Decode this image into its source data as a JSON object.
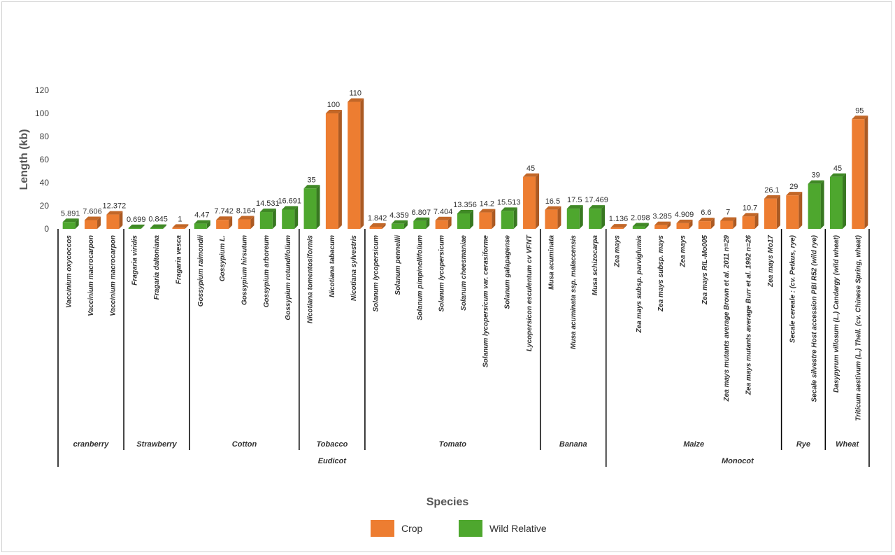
{
  "chart_data": {
    "type": "bar",
    "xlabel": "Species",
    "ylabel": "Length (kb)",
    "ylim": [
      0,
      120
    ],
    "yticks": [
      0,
      20,
      40,
      60,
      80,
      100,
      120
    ],
    "grid": false,
    "legend_position": "bottom",
    "legend": [
      {
        "name": "Crop",
        "color": "#ED7D31"
      },
      {
        "name": "Wild Relative",
        "color": "#4EA72E"
      }
    ],
    "categories": [
      "Vaccinium oxycoccos",
      "Vaccinium macrocarpon",
      "Vaccinium macrocarpon",
      "Fragaria viridis",
      "Fragaria daltoniana",
      "Fragaria vesca",
      "Gossypium raimondii",
      "Gossypium L.",
      "Gossypium hirsutum",
      "Gossypium arboreum",
      "Gossypium rotundifolium",
      "Nicotiana tomentosiformis",
      "Nicotiana tabacum",
      "Nicotiana sylvestris",
      "Solanum lycopersicum",
      "Solanum pennellii",
      "Solanum pimpinellifolium",
      "Solanum lycopersicum",
      "Solanum cheesmaniae",
      "Solanum lycopersicum var. cerasiforme",
      "Solanum galapagense",
      "Lycopersicon esculentum cv VFNT",
      "Musa acuminata",
      "Musa acuminata ssp. malaccensis",
      "Musa schizocarpa",
      "Zea mays",
      "Zea mays subsp. parviglumis",
      "Zea mays subsp. mays",
      "Zea mays",
      "Zea mays RIL-Mo005",
      "Zea mays mutants average Brown et al. 2011 n=29",
      "Zea mays mutants average Burr et al. 1992 n=26",
      "Zea mays Mo17",
      "Secale cereale : (cv. Petkus, rye)",
      "Secale silvestre Host accession PBI R52 (wild rye)",
      "Dasypyrum villosum (L.) Candargy (wild wheat)",
      "Triticum aestivum (L.) Thell. (cv. Chinese Spring, wheat)"
    ],
    "values": [
      5.891,
      7.606,
      12.372,
      0.699,
      0.845,
      1,
      4.47,
      7.742,
      8.164,
      14.531,
      16.691,
      35,
      100,
      110,
      1.842,
      4.359,
      6.807,
      7.404,
      13.356,
      14.2,
      15.513,
      45,
      16.5,
      17.5,
      17.469,
      1.136,
      2.098,
      3.285,
      4.909,
      6.6,
      7,
      10.7,
      26.1,
      29,
      39,
      45,
      95
    ],
    "value_labels": [
      "5.891",
      "7.606",
      "12.372",
      "0.699",
      "0.845",
      "1",
      "4.47",
      "7.742",
      "8.164",
      "14.531",
      "16.691",
      "35",
      "100",
      "110",
      "1.842",
      "4.359",
      "6.807",
      "7.404",
      "13.356",
      "14.2",
      "15.513",
      "45",
      "16.5",
      "17.5",
      "17.469",
      "1.136",
      "2.098",
      "3.285",
      "4.909",
      "6.6",
      "7",
      "10.7",
      "26.1",
      "29",
      "39",
      "45",
      "95"
    ],
    "series_of_bar": [
      "Wild Relative",
      "Crop",
      "Crop",
      "Wild Relative",
      "Wild Relative",
      "Crop",
      "Wild Relative",
      "Crop",
      "Crop",
      "Wild Relative",
      "Wild Relative",
      "Wild Relative",
      "Crop",
      "Crop",
      "Crop",
      "Wild Relative",
      "Wild Relative",
      "Crop",
      "Wild Relative",
      "Crop",
      "Wild Relative",
      "Crop",
      "Crop",
      "Wild Relative",
      "Wild Relative",
      "Crop",
      "Wild Relative",
      "Crop",
      "Crop",
      "Crop",
      "Crop",
      "Crop",
      "Crop",
      "Crop",
      "Wild Relative",
      "Wild Relative",
      "Crop"
    ],
    "groups": [
      {
        "name": "cranberry",
        "count": 3
      },
      {
        "name": "Strawberry",
        "count": 3
      },
      {
        "name": "Cotton",
        "count": 5
      },
      {
        "name": "Tobacco",
        "count": 3
      },
      {
        "name": "Tomato",
        "count": 8
      },
      {
        "name": "Banana",
        "count": 3
      },
      {
        "name": "Maize",
        "count": 8
      },
      {
        "name": "Rye",
        "count": 2
      },
      {
        "name": "Wheat",
        "count": 2
      }
    ],
    "super_groups": [
      {
        "name": "Eudicot",
        "count": 25
      },
      {
        "name": "Monocot",
        "count": 12
      }
    ]
  }
}
